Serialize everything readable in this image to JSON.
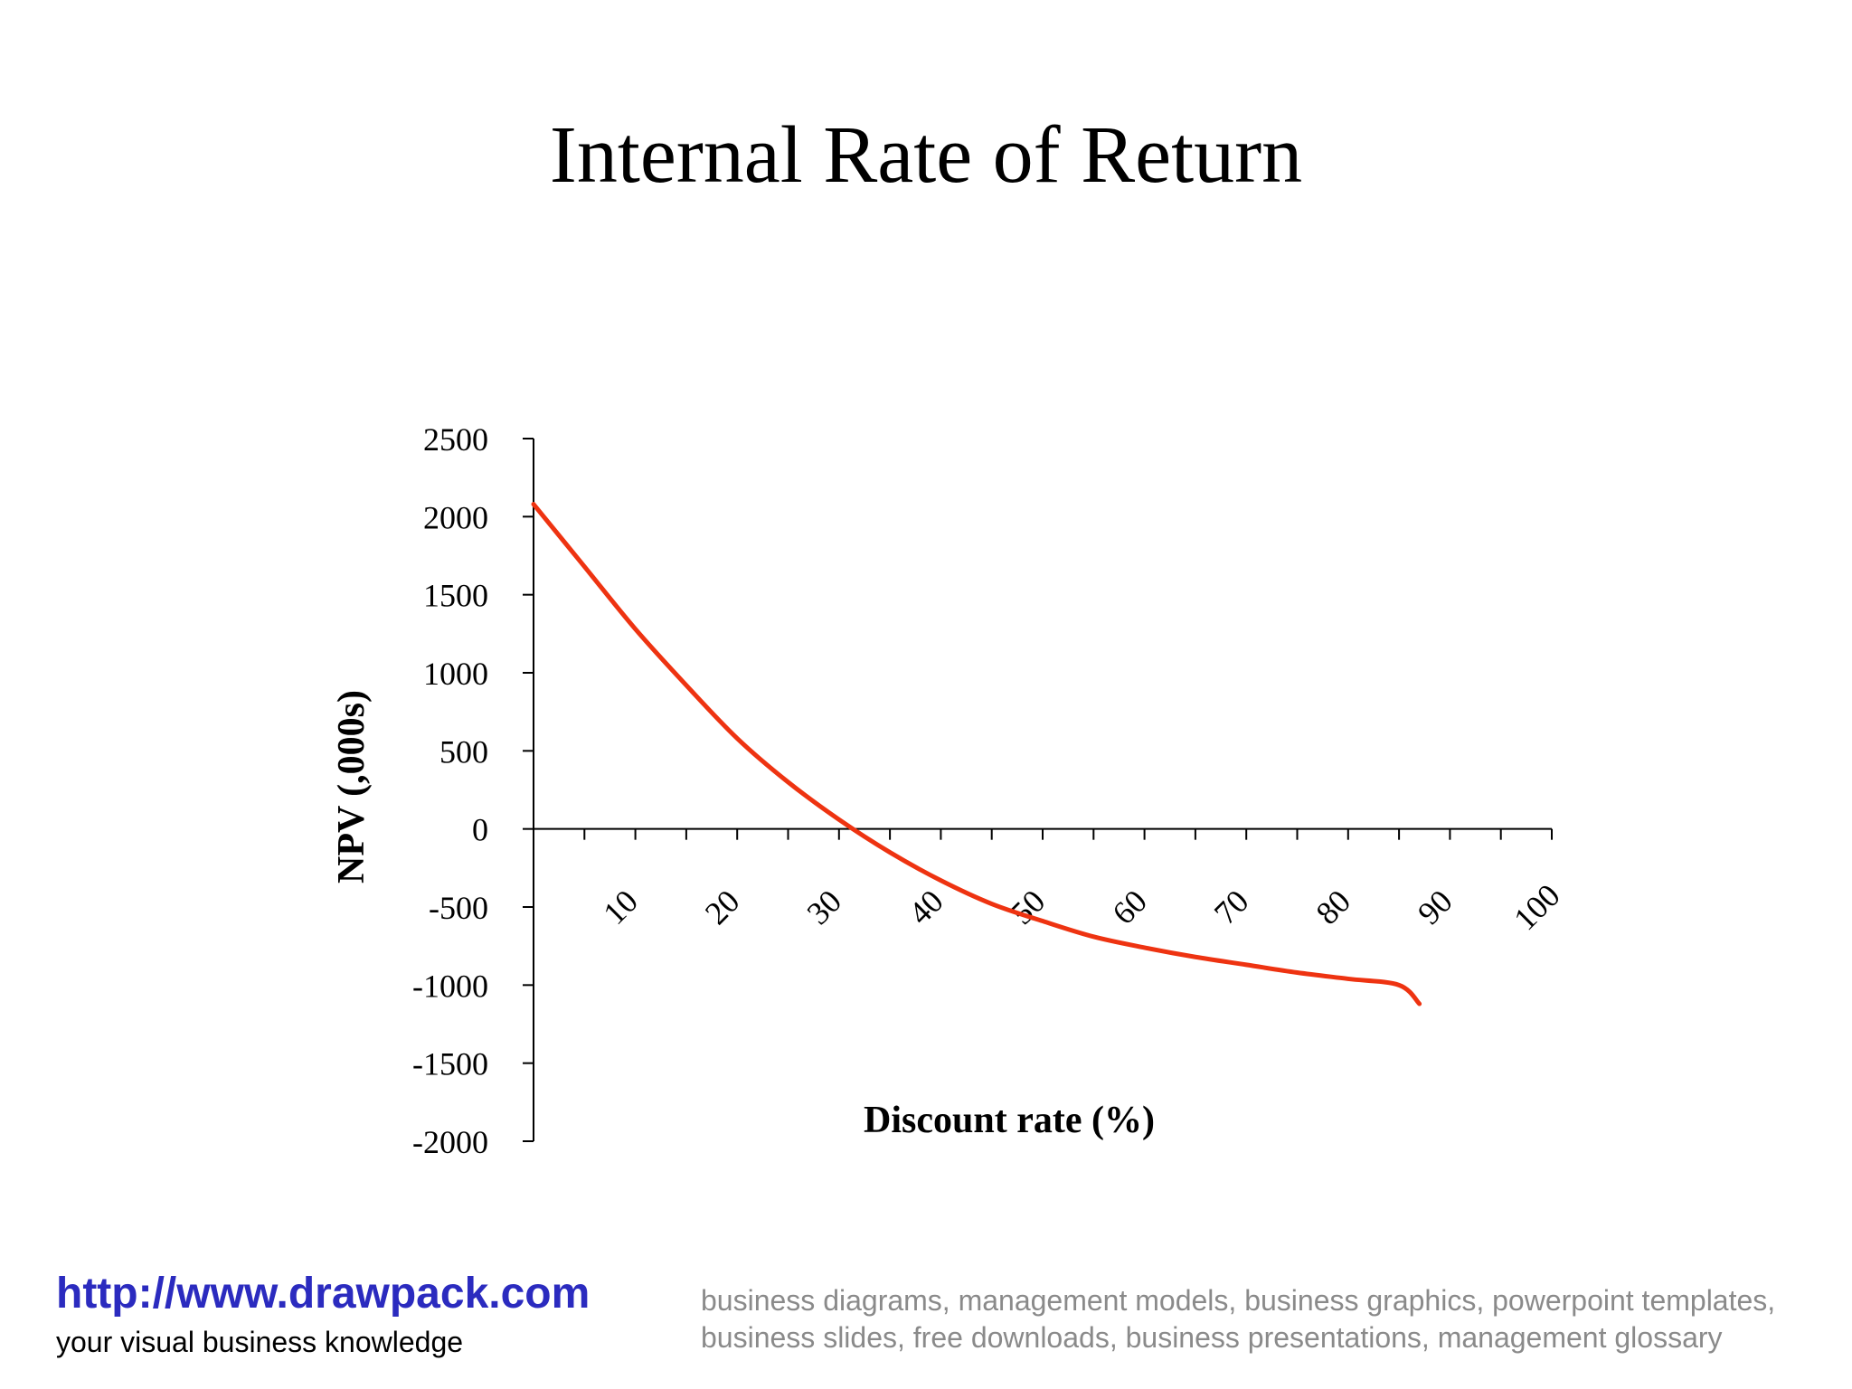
{
  "slide": {
    "title": "Internal Rate of Return"
  },
  "chart_data": {
    "type": "line",
    "title": "Internal Rate of Return",
    "xlabel": "Discount rate (%)",
    "ylabel": "NPV (,000s)",
    "x_ticks": [
      "10",
      "20",
      "30",
      "40",
      "50",
      "60",
      "70",
      "80",
      "90",
      "100"
    ],
    "y_ticks": [
      "2500",
      "2000",
      "1500",
      "1000",
      "500",
      "0",
      "-500",
      "-1000",
      "-1500",
      "-2000"
    ],
    "ylim": [
      -2000,
      2500
    ],
    "xlim": [
      0,
      100
    ],
    "grid": false,
    "line_color": "#ee3311",
    "series": [
      {
        "x": [
          0,
          5,
          10,
          15,
          20,
          25,
          30,
          35,
          40,
          45,
          50,
          55,
          60,
          65,
          70,
          75,
          80,
          85,
          87
        ],
        "values": [
          2080,
          1680,
          1280,
          920,
          580,
          300,
          60,
          -150,
          -330,
          -480,
          -590,
          -690,
          -760,
          -820,
          -870,
          -920,
          -960,
          -1000,
          -1120
        ]
      }
    ]
  },
  "footer": {
    "url": "http://www.drawpack.com",
    "tagline": "your visual business knowledge",
    "keywords": "business diagrams, management models, business graphics, powerpoint templates, business slides, free downloads, business presentations, management glossary"
  }
}
